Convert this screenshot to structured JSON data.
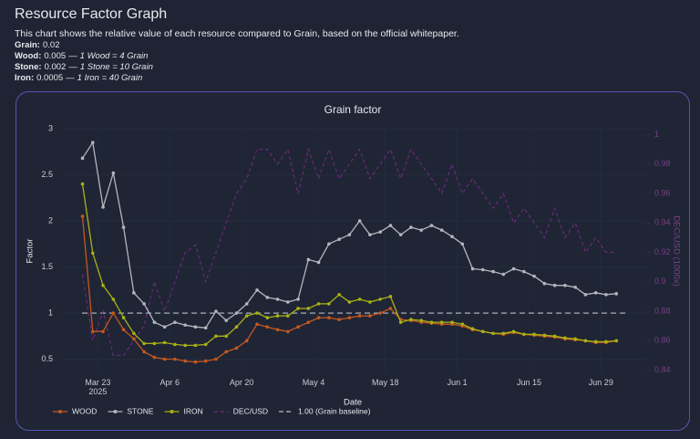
{
  "header": {
    "title": "Resource Factor Graph",
    "description": "This chart shows the relative value of each resource compared to Grain, based on the official whitepaper.",
    "lines": [
      {
        "label": "Grain:",
        "value": "0.02"
      },
      {
        "label": "Wood:",
        "value": "0.005",
        "separator": "—",
        "note": "1 Wood = 4 Grain"
      },
      {
        "label": "Stone:",
        "value": "0.002",
        "separator": "—",
        "note": "1 Stone = 10 Grain"
      },
      {
        "label": "Iron:",
        "value": "0.0005",
        "separator": "—",
        "note": "1 Iron = 40 Grain"
      }
    ]
  },
  "chart_data": {
    "type": "line",
    "title": "Grain factor",
    "x_label": "Date",
    "y_label": "Factor",
    "y2_label": "DEC/USD (1000x)",
    "x": [
      "2025-03-20",
      "2025-03-22",
      "2025-03-24",
      "2025-03-26",
      "2025-03-28",
      "2025-03-30",
      "2025-04-01",
      "2025-04-03",
      "2025-04-05",
      "2025-04-07",
      "2025-04-09",
      "2025-04-11",
      "2025-04-13",
      "2025-04-15",
      "2025-04-17",
      "2025-04-19",
      "2025-04-21",
      "2025-04-23",
      "2025-04-25",
      "2025-04-27",
      "2025-04-29",
      "2025-05-01",
      "2025-05-03",
      "2025-05-05",
      "2025-05-07",
      "2025-05-09",
      "2025-05-11",
      "2025-05-13",
      "2025-05-15",
      "2025-05-17",
      "2025-05-19",
      "2025-05-21",
      "2025-05-23",
      "2025-05-25",
      "2025-05-27",
      "2025-05-29",
      "2025-05-31",
      "2025-06-02",
      "2025-06-04",
      "2025-06-06",
      "2025-06-08",
      "2025-06-10",
      "2025-06-12",
      "2025-06-14",
      "2025-06-16",
      "2025-06-18",
      "2025-06-20",
      "2025-06-22",
      "2025-06-24",
      "2025-06-26",
      "2025-06-28",
      "2025-06-30",
      "2025-07-02"
    ],
    "xlim": [
      "2025-03-16",
      "2025-07-08"
    ],
    "xticks": [
      {
        "value": "2025-03-23",
        "label": "Mar 23"
      },
      {
        "value": "2025-04-06",
        "label": "Apr 6"
      },
      {
        "value": "2025-04-20",
        "label": "Apr 20"
      },
      {
        "value": "2025-05-04",
        "label": "May 4"
      },
      {
        "value": "2025-05-18",
        "label": "May 18"
      },
      {
        "value": "2025-06-01",
        "label": "Jun 1"
      },
      {
        "value": "2025-06-15",
        "label": "Jun 15"
      },
      {
        "value": "2025-06-29",
        "label": "Jun 29"
      }
    ],
    "x_year_label": "2025",
    "ylim": [
      0.35,
      3.0
    ],
    "yticks": [
      0.5,
      1,
      1.5,
      2,
      2.5,
      3
    ],
    "y2lim": [
      0.838,
      1.004
    ],
    "y2ticks": [
      0.84,
      0.86,
      0.88,
      0.9,
      0.92,
      0.94,
      0.96,
      0.98,
      1
    ],
    "grid": true,
    "series": [
      {
        "name": "WOOD",
        "color": "#c4581f",
        "markers": true,
        "values": [
          2.05,
          0.8,
          0.8,
          1.0,
          0.82,
          0.72,
          0.58,
          0.52,
          0.5,
          0.5,
          0.48,
          0.47,
          0.48,
          0.5,
          0.58,
          0.62,
          0.7,
          0.88,
          0.85,
          0.82,
          0.8,
          0.85,
          0.9,
          0.95,
          0.95,
          0.93,
          0.95,
          0.97,
          0.97,
          1.0,
          1.05,
          0.93,
          0.92,
          0.9,
          0.89,
          0.88,
          0.88,
          0.86,
          0.82,
          0.8,
          0.78,
          0.77,
          0.79,
          0.77,
          0.76,
          0.75,
          0.74,
          0.72,
          0.71,
          0.7,
          0.68,
          0.68,
          0.7
        ]
      },
      {
        "name": "STONE",
        "color": "#b4b6be",
        "markers": true,
        "values": [
          2.68,
          2.85,
          2.15,
          2.52,
          1.93,
          1.22,
          1.1,
          0.9,
          0.85,
          0.9,
          0.87,
          0.85,
          0.84,
          1.02,
          0.92,
          1.0,
          1.1,
          1.25,
          1.17,
          1.15,
          1.12,
          1.15,
          1.58,
          1.55,
          1.75,
          1.8,
          1.85,
          2.0,
          1.85,
          1.88,
          1.95,
          1.85,
          1.93,
          1.9,
          1.95,
          1.9,
          1.83,
          1.75,
          1.48,
          1.47,
          1.45,
          1.42,
          1.48,
          1.45,
          1.4,
          1.32,
          1.3,
          1.3,
          1.28,
          1.2,
          1.22,
          1.2,
          1.21
        ]
      },
      {
        "name": "IRON",
        "color": "#a9b214",
        "markers": true,
        "values": [
          2.4,
          1.65,
          1.3,
          1.15,
          0.95,
          0.78,
          0.67,
          0.67,
          0.68,
          0.66,
          0.65,
          0.65,
          0.66,
          0.75,
          0.75,
          0.85,
          0.97,
          1.0,
          0.95,
          0.97,
          0.97,
          1.05,
          1.05,
          1.1,
          1.1,
          1.2,
          1.12,
          1.15,
          1.12,
          1.15,
          1.18,
          0.9,
          0.93,
          0.92,
          0.9,
          0.9,
          0.9,
          0.88,
          0.83,
          0.8,
          0.78,
          0.78,
          0.8,
          0.77,
          0.77,
          0.76,
          0.75,
          0.73,
          0.72,
          0.7,
          0.69,
          0.69,
          0.7
        ]
      },
      {
        "name": "DEC/USD",
        "color": "#6e2a7e",
        "axis": "y2",
        "dash": true,
        "values": [
          0.905,
          0.86,
          0.88,
          0.85,
          0.85,
          0.86,
          0.87,
          0.9,
          0.88,
          0.9,
          0.92,
          0.925,
          0.9,
          0.92,
          0.94,
          0.96,
          0.97,
          0.99,
          0.99,
          0.98,
          0.99,
          0.96,
          0.99,
          0.97,
          0.99,
          0.97,
          0.98,
          0.99,
          0.97,
          0.98,
          0.99,
          0.97,
          0.99,
          0.98,
          0.97,
          0.96,
          0.98,
          0.96,
          0.97,
          0.96,
          0.95,
          0.96,
          0.94,
          0.95,
          0.94,
          0.93,
          0.95,
          0.93,
          0.94,
          0.92,
          0.93,
          0.92,
          0.92
        ]
      }
    ],
    "baseline": {
      "name": "1.00 (Grain baseline)",
      "value": 1,
      "color": "#b8bcc6"
    }
  }
}
